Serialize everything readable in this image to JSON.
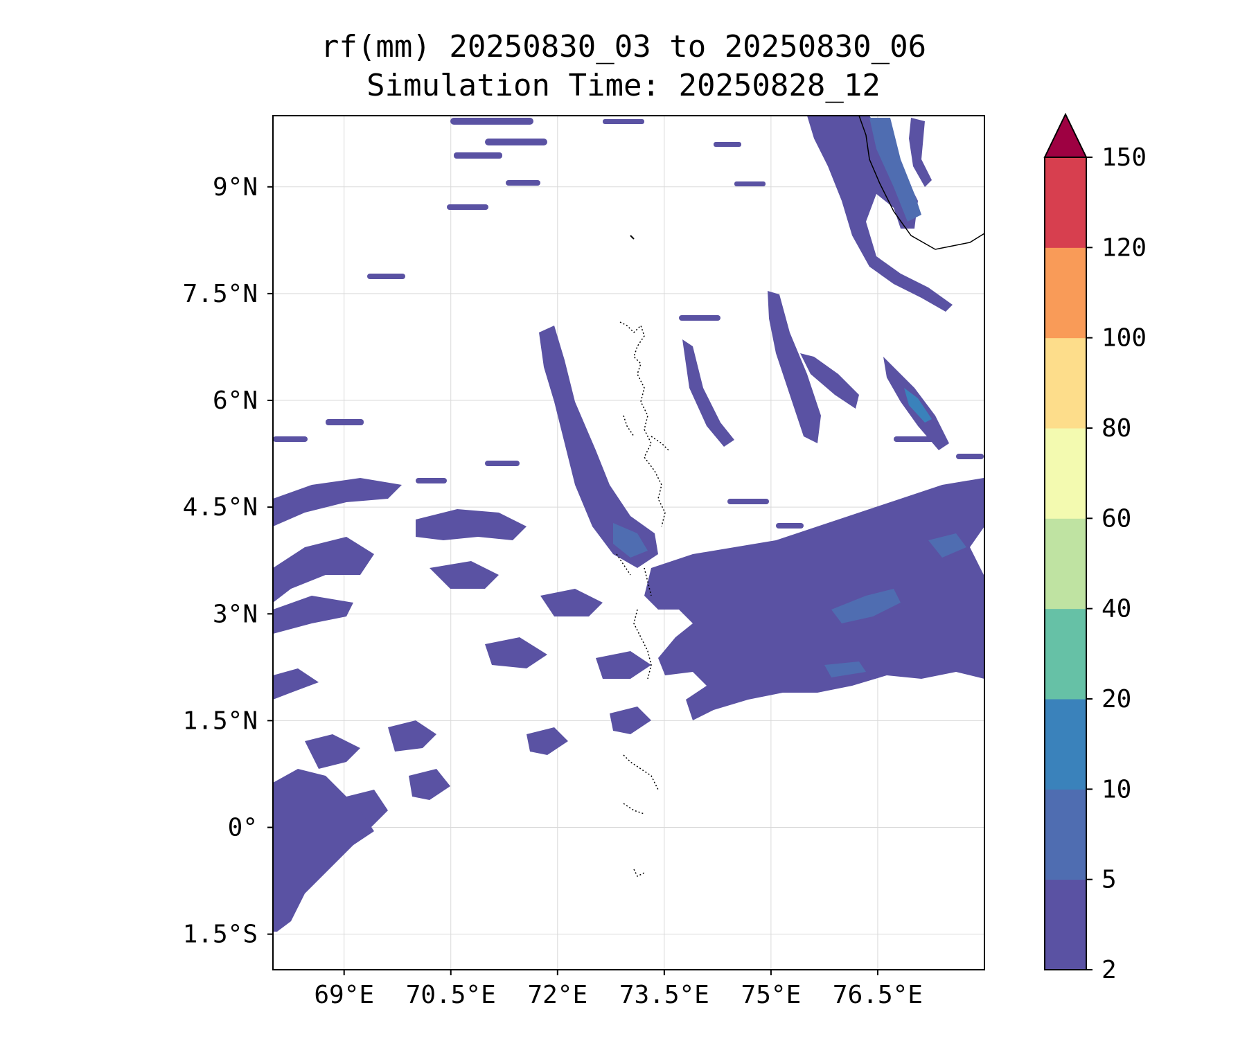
{
  "title_line1": "rf(mm) 20250830_03 to 20250830_06",
  "title_line2": "Simulation Time: 20250828_12",
  "map": {
    "lon_range": [
      68.0,
      78.0
    ],
    "lat_range": [
      -2.0,
      10.0
    ],
    "lon_ticks": [
      {
        "value": 69.0,
        "label": "69°E"
      },
      {
        "value": 70.5,
        "label": "70.5°E"
      },
      {
        "value": 72.0,
        "label": "72°E"
      },
      {
        "value": 73.5,
        "label": "73.5°E"
      },
      {
        "value": 75.0,
        "label": "75°E"
      },
      {
        "value": 76.5,
        "label": "76.5°E"
      }
    ],
    "lat_ticks": [
      {
        "value": 9.0,
        "label": "9°N"
      },
      {
        "value": 7.5,
        "label": "7.5°N"
      },
      {
        "value": 6.0,
        "label": "6°N"
      },
      {
        "value": 4.5,
        "label": "4.5°N"
      },
      {
        "value": 3.0,
        "label": "3°N"
      },
      {
        "value": 1.5,
        "label": "1.5°N"
      },
      {
        "value": 0.0,
        "label": "0°"
      },
      {
        "value": -1.5,
        "label": "1.5°S"
      }
    ],
    "gridlines": true,
    "rain_color": "#5a52a3",
    "rain_color_heavy": "#3f7fb8",
    "coast_color": "#000000"
  },
  "colorbar": {
    "position": "right",
    "extend": "max",
    "levels": [
      {
        "from": 2,
        "to": 5,
        "color": "#5a52a3"
      },
      {
        "from": 5,
        "to": 10,
        "color": "#4f6db1"
      },
      {
        "from": 10,
        "to": 20,
        "color": "#3a82bb"
      },
      {
        "from": 20,
        "to": 40,
        "color": "#66c1a6"
      },
      {
        "from": 40,
        "to": 60,
        "color": "#bfe3a2"
      },
      {
        "from": 60,
        "to": 80,
        "color": "#f3fab0"
      },
      {
        "from": 80,
        "to": 100,
        "color": "#fddd8b"
      },
      {
        "from": 100,
        "to": 120,
        "color": "#f99b58"
      },
      {
        "from": 120,
        "to": 150,
        "color": "#d73f4f"
      }
    ],
    "extend_color": "#9e0142",
    "tick_labels": [
      "2",
      "5",
      "10",
      "20",
      "40",
      "60",
      "80",
      "100",
      "120",
      "150"
    ]
  }
}
